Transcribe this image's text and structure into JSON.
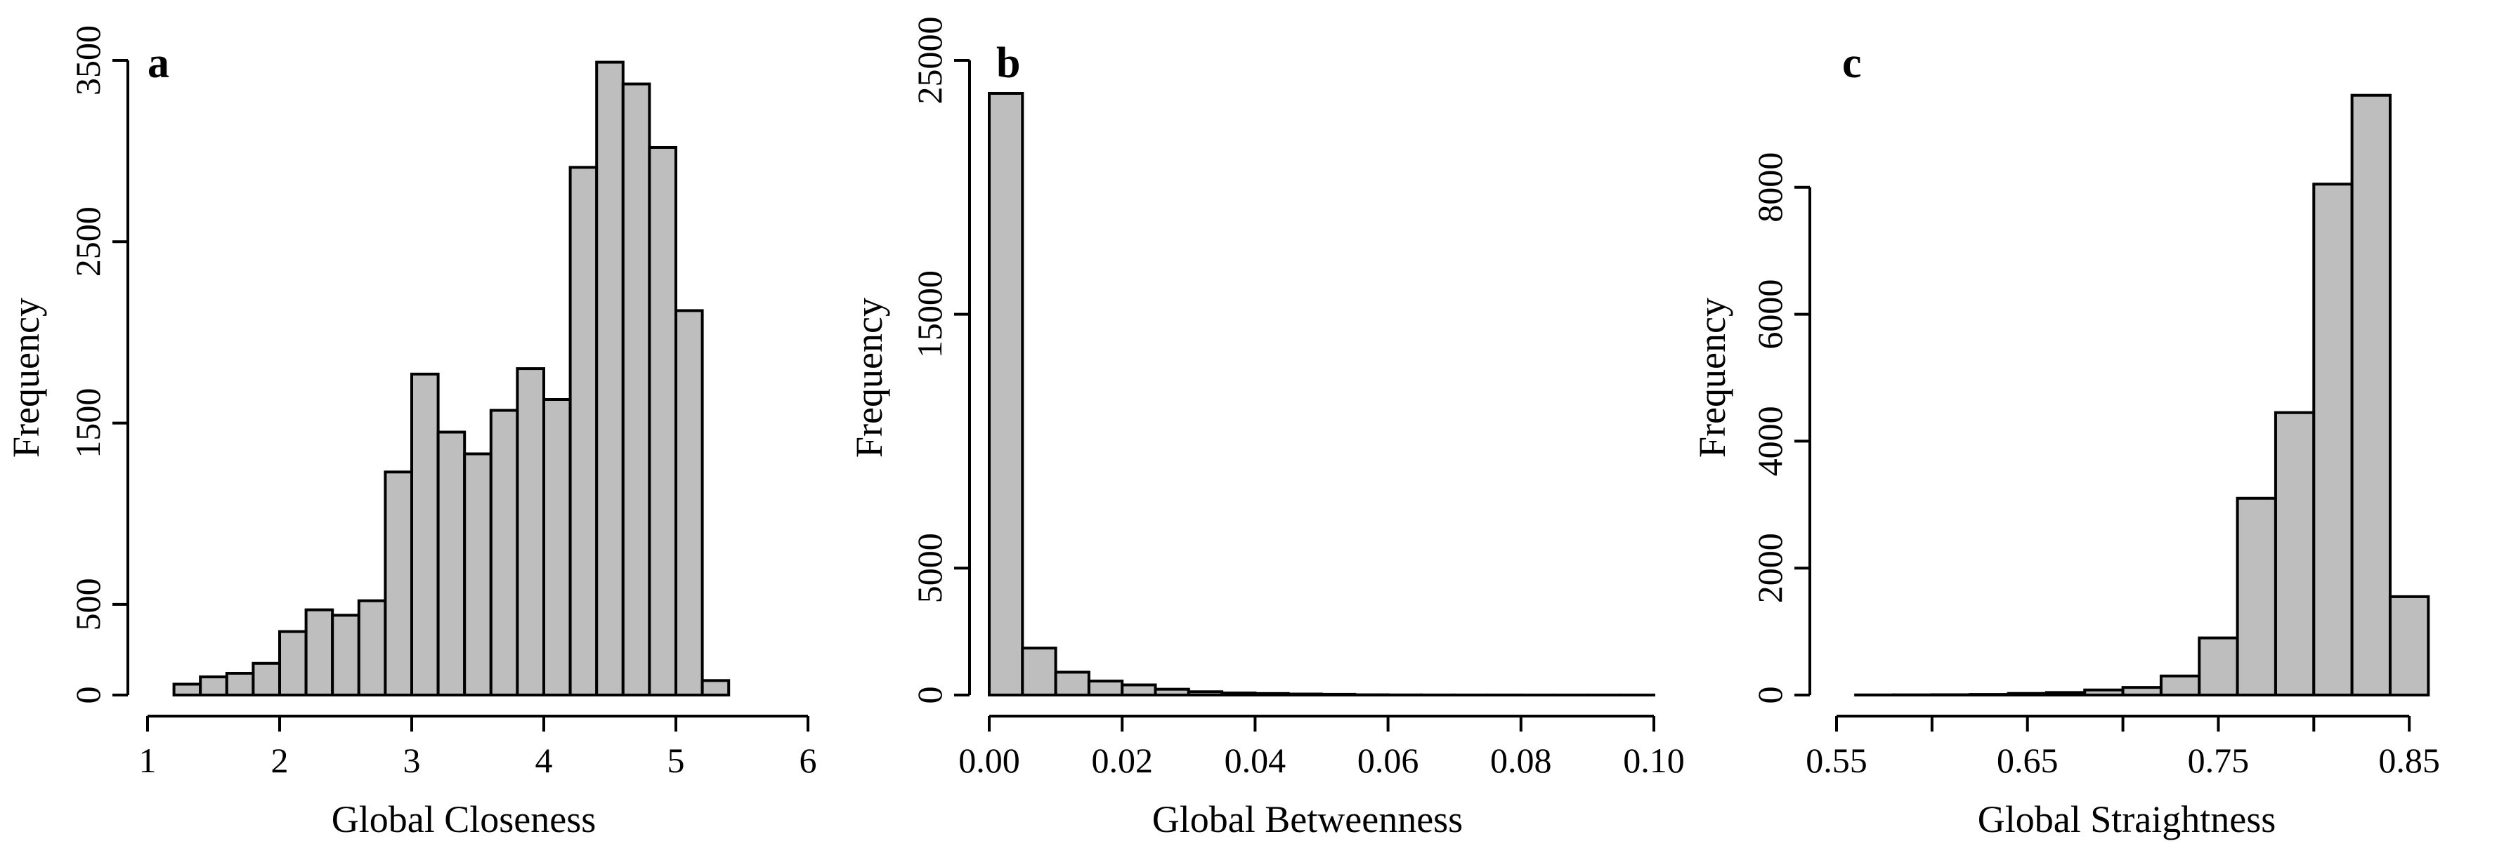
{
  "chart_data": [
    {
      "type": "bar",
      "panel": "a",
      "xlabel": "Global Closeness",
      "ylabel": "Frequency",
      "xlim": [
        1,
        6
      ],
      "ylim": [
        0,
        3500
      ],
      "xticks": [
        1,
        2,
        3,
        4,
        5,
        6
      ],
      "yticks": [
        0,
        500,
        1500,
        2500,
        3500
      ],
      "bin_edges": [
        1.2,
        1.4,
        1.6,
        1.8,
        2.0,
        2.2,
        2.4,
        2.6,
        2.8,
        3.0,
        3.2,
        3.4,
        3.6,
        3.8,
        4.0,
        4.2,
        4.4,
        4.6,
        4.8,
        5.0,
        5.2,
        5.4
      ],
      "values": [
        60,
        100,
        120,
        175,
        350,
        470,
        440,
        520,
        1230,
        1770,
        1450,
        1330,
        1570,
        1800,
        1630,
        2910,
        3490,
        3370,
        3020,
        2120,
        80
      ]
    },
    {
      "type": "bar",
      "panel": "b",
      "xlabel": "Global Betweenness",
      "ylabel": "Frequency",
      "xlim": [
        0,
        0.1
      ],
      "ylim": [
        0,
        25000
      ],
      "xticks": [
        "0.00",
        "0.02",
        "0.04",
        "0.06",
        "0.08",
        "0.10"
      ],
      "yticks": [
        0,
        5000,
        15000,
        25000
      ],
      "bin_edges": [
        0.0,
        0.005,
        0.01,
        0.015,
        0.02,
        0.025,
        0.03,
        0.035,
        0.04,
        0.045,
        0.05,
        0.055,
        0.06,
        0.065,
        0.07,
        0.075,
        0.08,
        0.085,
        0.09,
        0.095,
        0.1
      ],
      "values": [
        23700,
        1850,
        900,
        550,
        400,
        230,
        130,
        80,
        60,
        40,
        30,
        10,
        5,
        3,
        2,
        2,
        1,
        1,
        1,
        1
      ]
    },
    {
      "type": "bar",
      "panel": "c",
      "xlabel": "Global Straightness",
      "ylabel": "Frequency",
      "xlim": [
        0.55,
        0.9
      ],
      "ylim": [
        0,
        10000
      ],
      "xticks": [
        "0.55",
        "",
        "0.65",
        "",
        "0.75",
        "",
        "0.85"
      ],
      "xtick_values": [
        0.55,
        0.6,
        0.65,
        0.7,
        0.75,
        0.8,
        0.85
      ],
      "yticks": [
        0,
        2000,
        4000,
        6000,
        8000
      ],
      "bin_edges": [
        0.56,
        0.58,
        0.6,
        0.62,
        0.64,
        0.66,
        0.68,
        0.7,
        0.72,
        0.74,
        0.76,
        0.78,
        0.8,
        0.82,
        0.84,
        0.86,
        0.88
      ],
      "values": [
        2,
        3,
        5,
        10,
        25,
        40,
        80,
        120,
        300,
        900,
        3100,
        4450,
        8050,
        9450,
        1550,
        0
      ]
    }
  ]
}
